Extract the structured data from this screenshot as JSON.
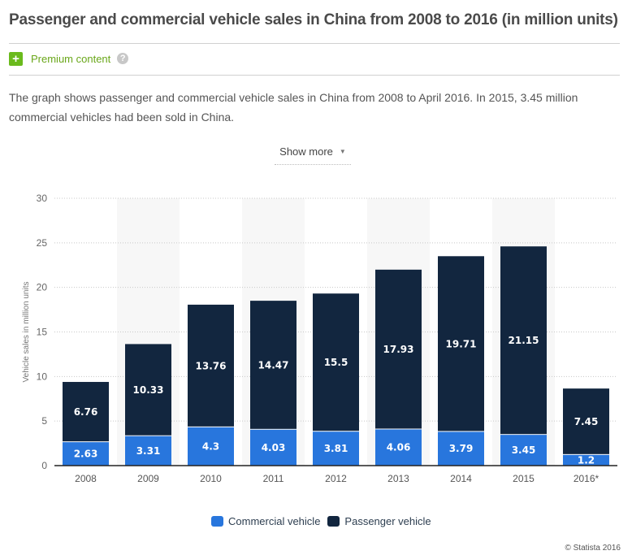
{
  "page": {
    "title": "Passenger and commercial vehicle sales in China from 2008 to 2016 (in million units)",
    "premium": {
      "icon": "plus-icon",
      "label": "Premium content",
      "help_icon": "question-icon"
    },
    "description": "The graph shows passenger and commercial vehicle sales in China from 2008 to April 2016. In 2015, 3.45 million commercial vehicles had been sold in China.",
    "show_more": {
      "label": "Show more",
      "icon": "caret-down-icon"
    },
    "copyright": "© Statista 2016"
  },
  "chart_data": {
    "type": "bar",
    "stacked": true,
    "title": "Passenger and commercial vehicle sales in China from 2008 to 2016 (in million units)",
    "xlabel": "",
    "ylabel": "Vehicle sales in million units",
    "ylim": [
      0,
      30
    ],
    "yticks": [
      0,
      5,
      10,
      15,
      20,
      25,
      30
    ],
    "grid": true,
    "legend_position": "bottom",
    "categories": [
      "2008",
      "2009",
      "2010",
      "2011",
      "2012",
      "2013",
      "2014",
      "2015",
      "2016*"
    ],
    "series": [
      {
        "name": "Commercial vehicle",
        "color": "#2876dd",
        "values": [
          2.63,
          3.31,
          4.3,
          4.03,
          3.81,
          4.06,
          3.79,
          3.45,
          1.2
        ]
      },
      {
        "name": "Passenger vehicle",
        "color": "#12263f",
        "values": [
          6.76,
          10.33,
          13.76,
          14.47,
          15.5,
          17.93,
          19.71,
          21.15,
          7.45
        ]
      }
    ]
  }
}
